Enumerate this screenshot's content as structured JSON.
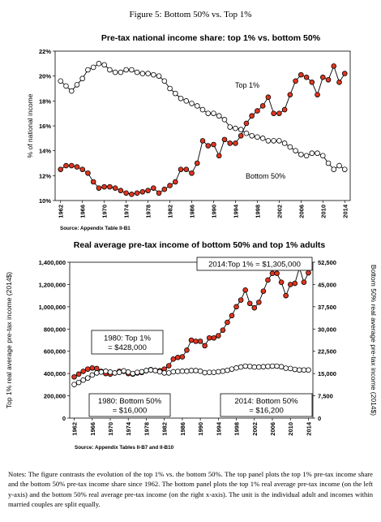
{
  "figure_caption": "Figure 5: Bottom 50% vs. Top 1%",
  "chart_data": [
    {
      "type": "line",
      "title": "Pre-tax national income share: top 1% vs. bottom 50%",
      "y_label": "% of national income",
      "source": "Source: Appendix Table II-B1",
      "x": [
        1962,
        1963,
        1964,
        1965,
        1966,
        1967,
        1968,
        1969,
        1970,
        1971,
        1972,
        1973,
        1974,
        1975,
        1976,
        1977,
        1978,
        1979,
        1980,
        1981,
        1982,
        1983,
        1984,
        1985,
        1986,
        1987,
        1988,
        1989,
        1990,
        1991,
        1992,
        1993,
        1994,
        1995,
        1996,
        1997,
        1998,
        1999,
        2000,
        2001,
        2002,
        2003,
        2004,
        2005,
        2006,
        2007,
        2008,
        2009,
        2010,
        2011,
        2012,
        2013,
        2014
      ],
      "xlim": [
        1961,
        2015
      ],
      "xticks": [
        1962,
        1966,
        1970,
        1974,
        1978,
        1982,
        1986,
        1990,
        1994,
        1998,
        2002,
        2006,
        2010,
        2014
      ],
      "ylim": [
        10,
        22
      ],
      "yticks": [
        {
          "value": 10,
          "label": "10%"
        },
        {
          "value": 12,
          "label": "12%"
        },
        {
          "value": 14,
          "label": "14%"
        },
        {
          "value": 16,
          "label": "16%"
        },
        {
          "value": 18,
          "label": "18%"
        },
        {
          "value": 20,
          "label": "20%"
        },
        {
          "value": 22,
          "label": "22%"
        }
      ],
      "series": [
        {
          "name": "Top 1%",
          "color": "#e2351f",
          "values": [
            12.5,
            12.8,
            12.8,
            12.7,
            12.5,
            12.2,
            11.5,
            11.0,
            11.1,
            11.1,
            11.0,
            10.8,
            10.6,
            10.5,
            10.6,
            10.7,
            10.8,
            11.0,
            10.6,
            10.9,
            11.2,
            11.5,
            12.5,
            12.5,
            12.2,
            13.0,
            14.8,
            14.4,
            14.5,
            13.6,
            14.9,
            14.6,
            14.6,
            15.2,
            16.2,
            16.8,
            17.2,
            17.6,
            18.3,
            17.0,
            17.0,
            17.3,
            18.5,
            19.6,
            20.1,
            19.9,
            19.5,
            18.5,
            19.9,
            19.7,
            20.8,
            19.5,
            20.2
          ]
        },
        {
          "name": "Bottom 50%",
          "color": "#ffffff",
          "values": [
            19.6,
            19.2,
            18.8,
            19.3,
            19.8,
            20.5,
            20.7,
            21.0,
            20.9,
            20.5,
            20.3,
            20.3,
            20.5,
            20.5,
            20.3,
            20.2,
            20.2,
            20.1,
            20.0,
            19.6,
            19.0,
            18.6,
            18.2,
            18.0,
            17.8,
            17.6,
            17.3,
            17.0,
            17.0,
            16.8,
            16.5,
            15.9,
            15.8,
            15.7,
            15.4,
            15.2,
            15.1,
            15.0,
            14.8,
            14.8,
            14.8,
            14.6,
            14.3,
            14.0,
            13.7,
            13.6,
            13.8,
            13.8,
            13.6,
            13.0,
            12.5,
            12.8,
            12.5
          ]
        }
      ]
    },
    {
      "type": "line",
      "title": "Real average pre-tax income of bottom 50% and top 1% adults",
      "y_label": "Top 1% real average pre-tax income (2014$)",
      "y2_label": "Bottom 50% real average pre-tax income (2014$)",
      "source": "Source: Appendix Tables II-B7 and II-B10",
      "x": [
        1962,
        1963,
        1964,
        1965,
        1966,
        1967,
        1968,
        1969,
        1970,
        1971,
        1972,
        1973,
        1974,
        1975,
        1976,
        1977,
        1978,
        1979,
        1980,
        1981,
        1982,
        1983,
        1984,
        1985,
        1986,
        1987,
        1988,
        1989,
        1990,
        1991,
        1992,
        1993,
        1994,
        1995,
        1996,
        1997,
        1998,
        1999,
        2000,
        2001,
        2002,
        2003,
        2004,
        2005,
        2006,
        2007,
        2008,
        2009,
        2010,
        2011,
        2012,
        2013,
        2014
      ],
      "xlim": [
        1961,
        2015
      ],
      "xticks": [
        1962,
        1966,
        1970,
        1974,
        1978,
        1982,
        1986,
        1990,
        1994,
        1998,
        2002,
        2006,
        2010,
        2014
      ],
      "ylim": [
        0,
        1400000
      ],
      "yticks": [
        0,
        {
          "value": 200000,
          "label": "200,000"
        },
        {
          "value": 400000,
          "label": "400,000"
        },
        {
          "value": 600000,
          "label": "600,000"
        },
        {
          "value": 800000,
          "label": "800,000"
        },
        {
          "value": 1000000,
          "label": "1,000,000"
        },
        {
          "value": 1200000,
          "label": "1,200,000"
        },
        {
          "value": 1400000,
          "label": "1,400,000"
        }
      ],
      "y2lim": [
        0,
        52500
      ],
      "y2ticks": [
        0,
        {
          "value": 7500,
          "label": "7,500"
        },
        {
          "value": 15000,
          "label": "15,000"
        },
        {
          "value": 22500,
          "label": "22,500"
        },
        {
          "value": 30000,
          "label": "30,000"
        },
        {
          "value": 37500,
          "label": "37,500"
        },
        {
          "value": 45000,
          "label": "45,000"
        },
        {
          "value": 52500,
          "label": "52,500"
        }
      ],
      "series": [
        {
          "name": "Top 1%",
          "color": "#e2351f",
          "values": [
            370000,
            395000,
            420000,
            440000,
            450000,
            445000,
            420000,
            400000,
            395000,
            405000,
            420000,
            420000,
            400000,
            395000,
            405000,
            410000,
            425000,
            435000,
            428000,
            425000,
            440000,
            470000,
            530000,
            545000,
            550000,
            610000,
            700000,
            690000,
            690000,
            650000,
            720000,
            720000,
            740000,
            790000,
            860000,
            920000,
            1000000,
            1060000,
            1150000,
            1030000,
            990000,
            1040000,
            1140000,
            1240000,
            1300000,
            1300000,
            1220000,
            1100000,
            1200000,
            1210000,
            1350000,
            1220000,
            1305000
          ]
        },
        {
          "name": "Bottom 50%",
          "color": "#ffffff",
          "axis": "y2",
          "values": [
            11300,
            12000,
            12800,
            13500,
            14500,
            15200,
            15500,
            15800,
            15500,
            15200,
            15400,
            15900,
            15500,
            15000,
            15400,
            15600,
            16000,
            16200,
            16000,
            15600,
            15200,
            15200,
            15600,
            15700,
            15800,
            15800,
            16000,
            16000,
            15800,
            15300,
            15400,
            15400,
            15600,
            15800,
            16100,
            16500,
            16900,
            17200,
            17500,
            17400,
            17200,
            17200,
            17300,
            17400,
            17500,
            17500,
            17300,
            16800,
            16700,
            16400,
            16200,
            16200,
            16200
          ]
        }
      ],
      "annotations": [
        {
          "lines": [
            "2014:Top 1% = $1,305,000"
          ]
        },
        {
          "lines": [
            "1980: Top 1%",
            "= $428,000"
          ]
        },
        {
          "lines": [
            "1980: Bottom 50%",
            "= $16,000"
          ]
        },
        {
          "lines": [
            "2014: Bottom 50%",
            "= $16,200"
          ]
        }
      ]
    }
  ],
  "notes": "Notes: The figure contrasts the evolution of the top 1% vs. the bottom 50%. The top panel plots the top 1% pre-tax income share and the bottom 50% pre-tax income share since 1962. The bottom panel plots the top 1% real average pre-tax income (on the left y-axis) and the bottom 50% real average pre-tax income (on the right x-axis). The unit is the individual adult and incomes within married couples are split equally."
}
